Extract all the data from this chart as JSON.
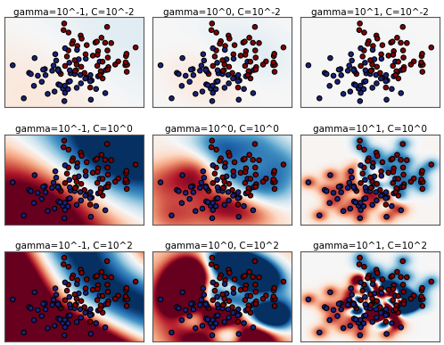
{
  "gammas": [
    -1,
    0,
    1
  ],
  "Cs": [
    -2,
    0,
    2
  ],
  "figsize": [
    4.98,
    3.87
  ],
  "dpi": 100,
  "seed": 0,
  "n_samples": 100,
  "cmap": "RdBu",
  "point_edgecolor": "black",
  "point_size": 15,
  "point_linewidth": 0.8,
  "vmin": -1.5,
  "vmax": 1.5,
  "title_fontsize": 7.5,
  "mesh_resolution": 300
}
